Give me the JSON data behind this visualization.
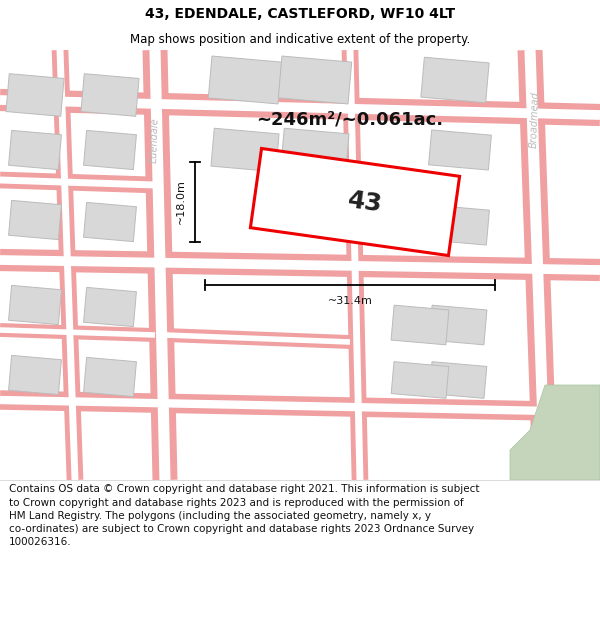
{
  "title": "43, EDENDALE, CASTLEFORD, WF10 4LT",
  "subtitle": "Map shows position and indicative extent of the property.",
  "footer": "Contains OS data © Crown copyright and database right 2021. This information is subject to Crown copyright and database rights 2023 and is reproduced with the permission of HM Land Registry. The polygons (including the associated geometry, namely x, y co-ordinates) are subject to Crown copyright and database rights 2023 Ordnance Survey 100026316.",
  "map_bg": "#f2f2f2",
  "footer_bg": "#ffffff",
  "title_bg": "#ffffff",
  "area_text": "~246m²/~0.061ac.",
  "property_number": "43",
  "width_label": "~31.4m",
  "height_label": "~18.0m",
  "road_color": "#f0a0a0",
  "road_center_color": "#ffffff",
  "building_color": "#d8d8d8",
  "building_edge": "#bbbbbb",
  "property_fill": "#ffffff",
  "property_color": "#ee0000",
  "street_label_color": "#bbbbbb",
  "green_patch_color": "#c5d5bc",
  "title_fontsize": 10,
  "subtitle_fontsize": 8.5,
  "area_fontsize": 13,
  "property_fontsize": 18,
  "dim_fontsize": 8,
  "footer_fontsize": 7.5
}
